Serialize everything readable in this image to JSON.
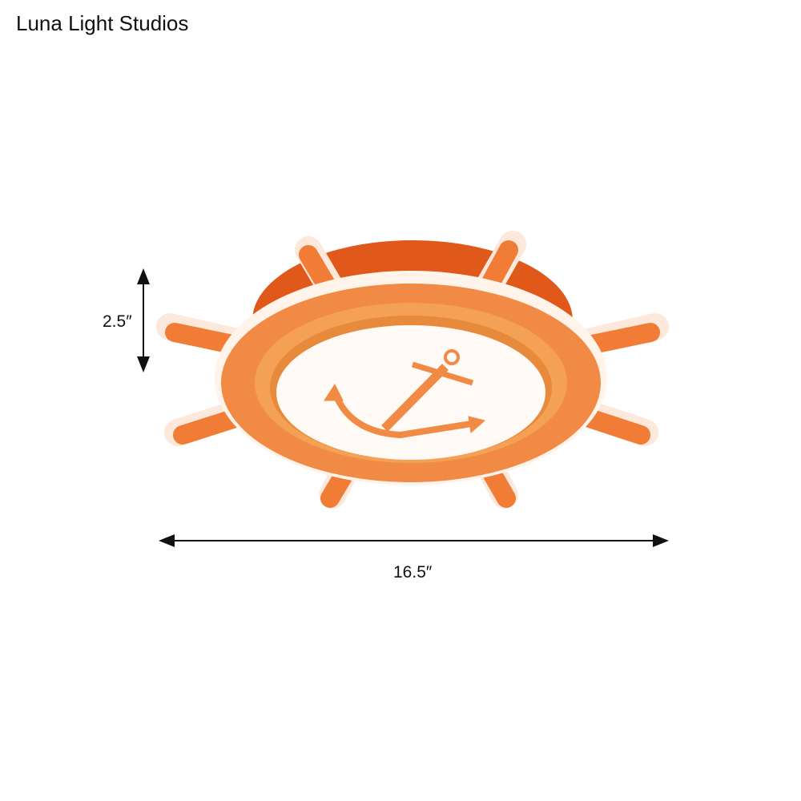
{
  "brand": "Luna Light Studios",
  "dimensions": {
    "height": "2.5″",
    "width": "16.5″"
  },
  "colors": {
    "lamp_orange": "#f08a45",
    "drum_orange": "#e0581a",
    "glow": "#fff6ee",
    "line": "#111111"
  },
  "product_icon": "ship-wheel-anchor-ceiling-light"
}
